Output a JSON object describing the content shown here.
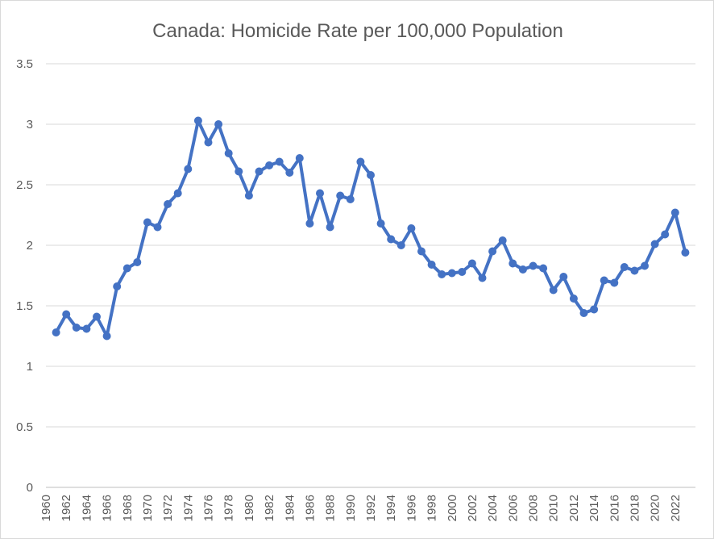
{
  "chart_data": {
    "type": "line",
    "title": "Canada: Homicide Rate per 100,000 Population",
    "xlabel": "",
    "ylabel": "",
    "ylim": [
      0,
      3.5
    ],
    "yticks": [
      "0",
      "0.5",
      "1",
      "1.5",
      "2",
      "2.5",
      "3",
      "3.5"
    ],
    "xlim": [
      1960,
      2024
    ],
    "xticks": [
      "1960",
      "1962",
      "1964",
      "1966",
      "1968",
      "1970",
      "1972",
      "1974",
      "1976",
      "1978",
      "1980",
      "1982",
      "1984",
      "1986",
      "1988",
      "1990",
      "1992",
      "1994",
      "1996",
      "1998",
      "2000",
      "2002",
      "2004",
      "2006",
      "2008",
      "2010",
      "2012",
      "2014",
      "2016",
      "2018",
      "2020",
      "2022"
    ],
    "grid": true,
    "legend": "none",
    "color": "#4472c4",
    "series": [
      {
        "x": [
          1961,
          1962,
          1963,
          1964,
          1965,
          1966,
          1967,
          1968,
          1969,
          1970,
          1971,
          1972,
          1973,
          1974,
          1975,
          1976,
          1977,
          1978,
          1979,
          1980,
          1981,
          1982,
          1983,
          1984,
          1985,
          1986,
          1987,
          1988,
          1989,
          1990,
          1991,
          1992,
          1993,
          1994,
          1995,
          1996,
          1997,
          1998,
          1999,
          2000,
          2001,
          2002,
          2003,
          2004,
          2005,
          2006,
          2007,
          2008,
          2009,
          2010,
          2011,
          2012,
          2013,
          2014,
          2015,
          2016,
          2017,
          2018,
          2019,
          2020,
          2021,
          2022,
          2023
        ],
        "values": [
          1.28,
          1.43,
          1.32,
          1.31,
          1.41,
          1.25,
          1.66,
          1.81,
          1.86,
          2.19,
          2.15,
          2.34,
          2.43,
          2.63,
          3.03,
          2.85,
          3.0,
          2.76,
          2.61,
          2.41,
          2.61,
          2.66,
          2.69,
          2.6,
          2.72,
          2.18,
          2.43,
          2.15,
          2.41,
          2.38,
          2.69,
          2.58,
          2.18,
          2.05,
          2.0,
          2.14,
          1.95,
          1.84,
          1.76,
          1.77,
          1.78,
          1.85,
          1.73,
          1.95,
          2.04,
          1.85,
          1.8,
          1.83,
          1.81,
          1.63,
          1.74,
          1.56,
          1.44,
          1.47,
          1.71,
          1.69,
          1.82,
          1.79,
          1.83,
          2.01,
          2.09,
          2.27,
          1.94
        ]
      }
    ]
  }
}
